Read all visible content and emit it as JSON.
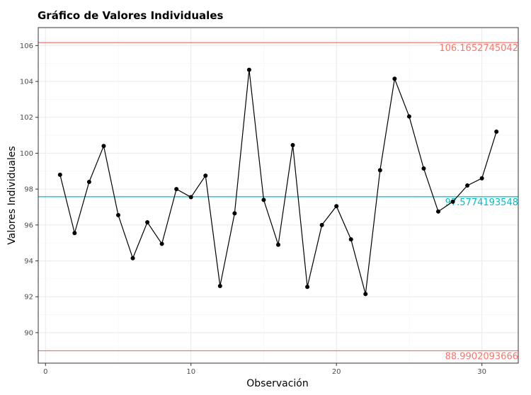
{
  "chart_data": {
    "type": "line",
    "title": "Gráfico de Valores Individuales",
    "xlabel": "Observación",
    "ylabel": "Valores Individuales",
    "xlim": [
      -0.5,
      32.5
    ],
    "ylim": [
      88.3,
      107.0
    ],
    "x_ticks": [
      0,
      10,
      20,
      30
    ],
    "y_ticks": [
      90,
      92,
      94,
      96,
      98,
      100,
      102,
      104,
      106
    ],
    "grid": true,
    "series": [
      {
        "x": [
          1,
          2,
          3,
          4,
          5,
          6,
          7,
          8,
          9,
          10,
          11,
          12,
          13,
          14,
          15,
          16,
          17,
          18,
          19,
          20,
          21,
          22,
          23,
          24,
          25,
          26,
          27,
          28,
          29,
          30,
          31
        ],
        "values": [
          98.8,
          95.55,
          98.4,
          100.4,
          96.55,
          94.15,
          96.15,
          94.95,
          98.0,
          97.55,
          98.75,
          92.6,
          96.65,
          104.65,
          97.4,
          94.9,
          100.45,
          92.55,
          96.0,
          97.05,
          95.2,
          92.15,
          99.05,
          104.15,
          102.05,
          99.15,
          96.75,
          97.3,
          98.2,
          98.6,
          101.2
        ]
      }
    ],
    "reference_lines": [
      {
        "value": 106.1652745042,
        "label": "106.1652745042",
        "color": "#f8766d"
      },
      {
        "value": 97.5774193548,
        "label": "97.5774193548",
        "color": "#00bfc4"
      },
      {
        "value": 88.9902093666,
        "label": "88.9902093666",
        "color": "#f8766d"
      }
    ],
    "colors": {
      "line": "#000000",
      "points": "#000000",
      "grid": "#ebebeb",
      "panel_border": "#333333"
    }
  }
}
